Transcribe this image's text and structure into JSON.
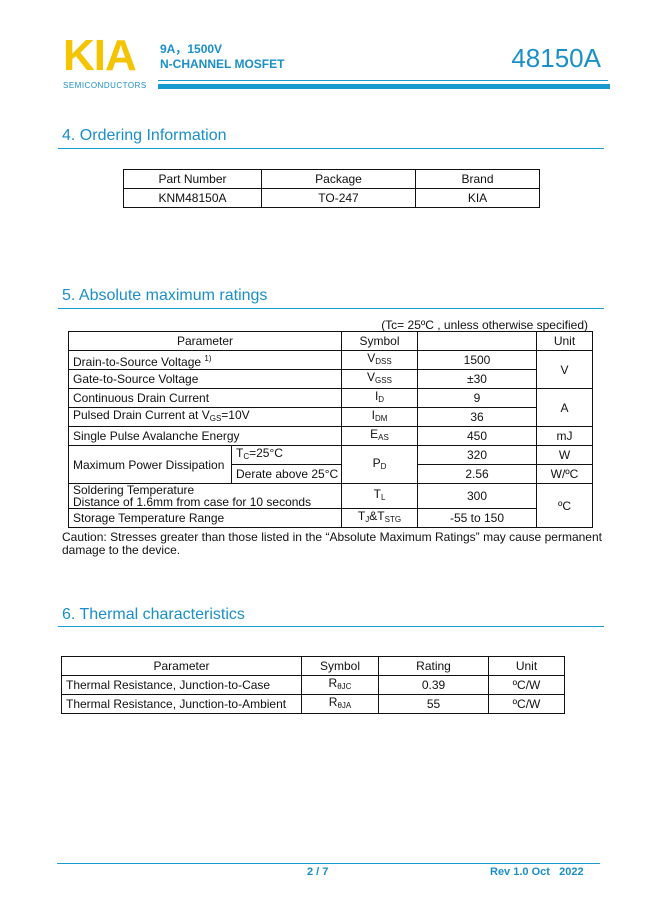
{
  "header": {
    "logo": "KIA",
    "logo_sub": "SEMICONDUCTORS",
    "rating": "9A，1500V",
    "device_type": "N-CHANNEL MOSFET",
    "part": "48150A"
  },
  "colors": {
    "accent": "#1a8fc8",
    "logo": "#f5c400"
  },
  "ordering": {
    "title": "4. Ordering Information",
    "headers": [
      "Part Number",
      "Package",
      "Brand"
    ],
    "row": [
      "KNM48150A",
      "TO-247",
      "KIA"
    ]
  },
  "abs_max": {
    "title": "5. Absolute maximum ratings",
    "condition": "(Tc= 25ºC , unless otherwise specified)",
    "headers": {
      "parameter": "Parameter",
      "symbol": "Symbol",
      "value": "",
      "unit": "Unit"
    },
    "rows": [
      {
        "param": "Drain-to-Source Voltage",
        "note": "1)",
        "sym": "V",
        "sym_sub": "DSS",
        "value": "1500",
        "unit": "V"
      },
      {
        "param": "Gate-to-Source Voltage",
        "sym": "V",
        "sym_sub": "GSS",
        "value": "±30"
      },
      {
        "param": "Continuous Drain Current",
        "sym": "I",
        "sym_sub": "D",
        "value": "9",
        "unit": "A"
      },
      {
        "param_a": "Pulsed Drain Current at V",
        "param_sub": "GS",
        "param_b": "=10V",
        "sym": "I",
        "sym_sub": "DM",
        "value": "36"
      },
      {
        "param": "Single Pulse Avalanche Energy",
        "sym": "E",
        "sym_sub": "AS",
        "value": "450",
        "unit": "mJ"
      },
      {
        "param": "Maximum Power Dissipation",
        "cond1_a": "T",
        "cond1_sub": "C",
        "cond1_b": "=25°C",
        "cond2": "Derate above 25°C",
        "sym": "P",
        "sym_sub": "D",
        "value1": "320",
        "unit1": "W",
        "value2": "2.56",
        "unit2": "W/ºC"
      },
      {
        "param1": "Soldering Temperature",
        "param2": "Distance of 1.6mm from case for 10 seconds",
        "sym": "T",
        "sym_sub": "L",
        "value": "300",
        "unit": "ºC"
      },
      {
        "param": "Storage Temperature Range",
        "sym_a": "T",
        "sym_sub1": "J",
        "sym_b": "&T",
        "sym_sub2": "STG",
        "value": "-55 to 150"
      }
    ],
    "caution": "Caution: Stresses greater than those listed in the “Absolute Maximum Ratings” may cause permanent damage to the device."
  },
  "thermal": {
    "title": "6. Thermal characteristics",
    "headers": [
      "Parameter",
      "Symbol",
      "Rating",
      "Unit"
    ],
    "rows": [
      {
        "param": "Thermal Resistance, Junction-to-Case",
        "sym": "R",
        "sym_sub": "θJC",
        "value": "0.39",
        "unit": "ºC/W"
      },
      {
        "param": "Thermal Resistance, Junction-to-Ambient",
        "sym": "R",
        "sym_sub": "θJA",
        "value": "55",
        "unit": "ºC/W"
      }
    ]
  },
  "footer": {
    "page": "2 / 7",
    "revision": "Rev 1.0 Oct   2022"
  }
}
